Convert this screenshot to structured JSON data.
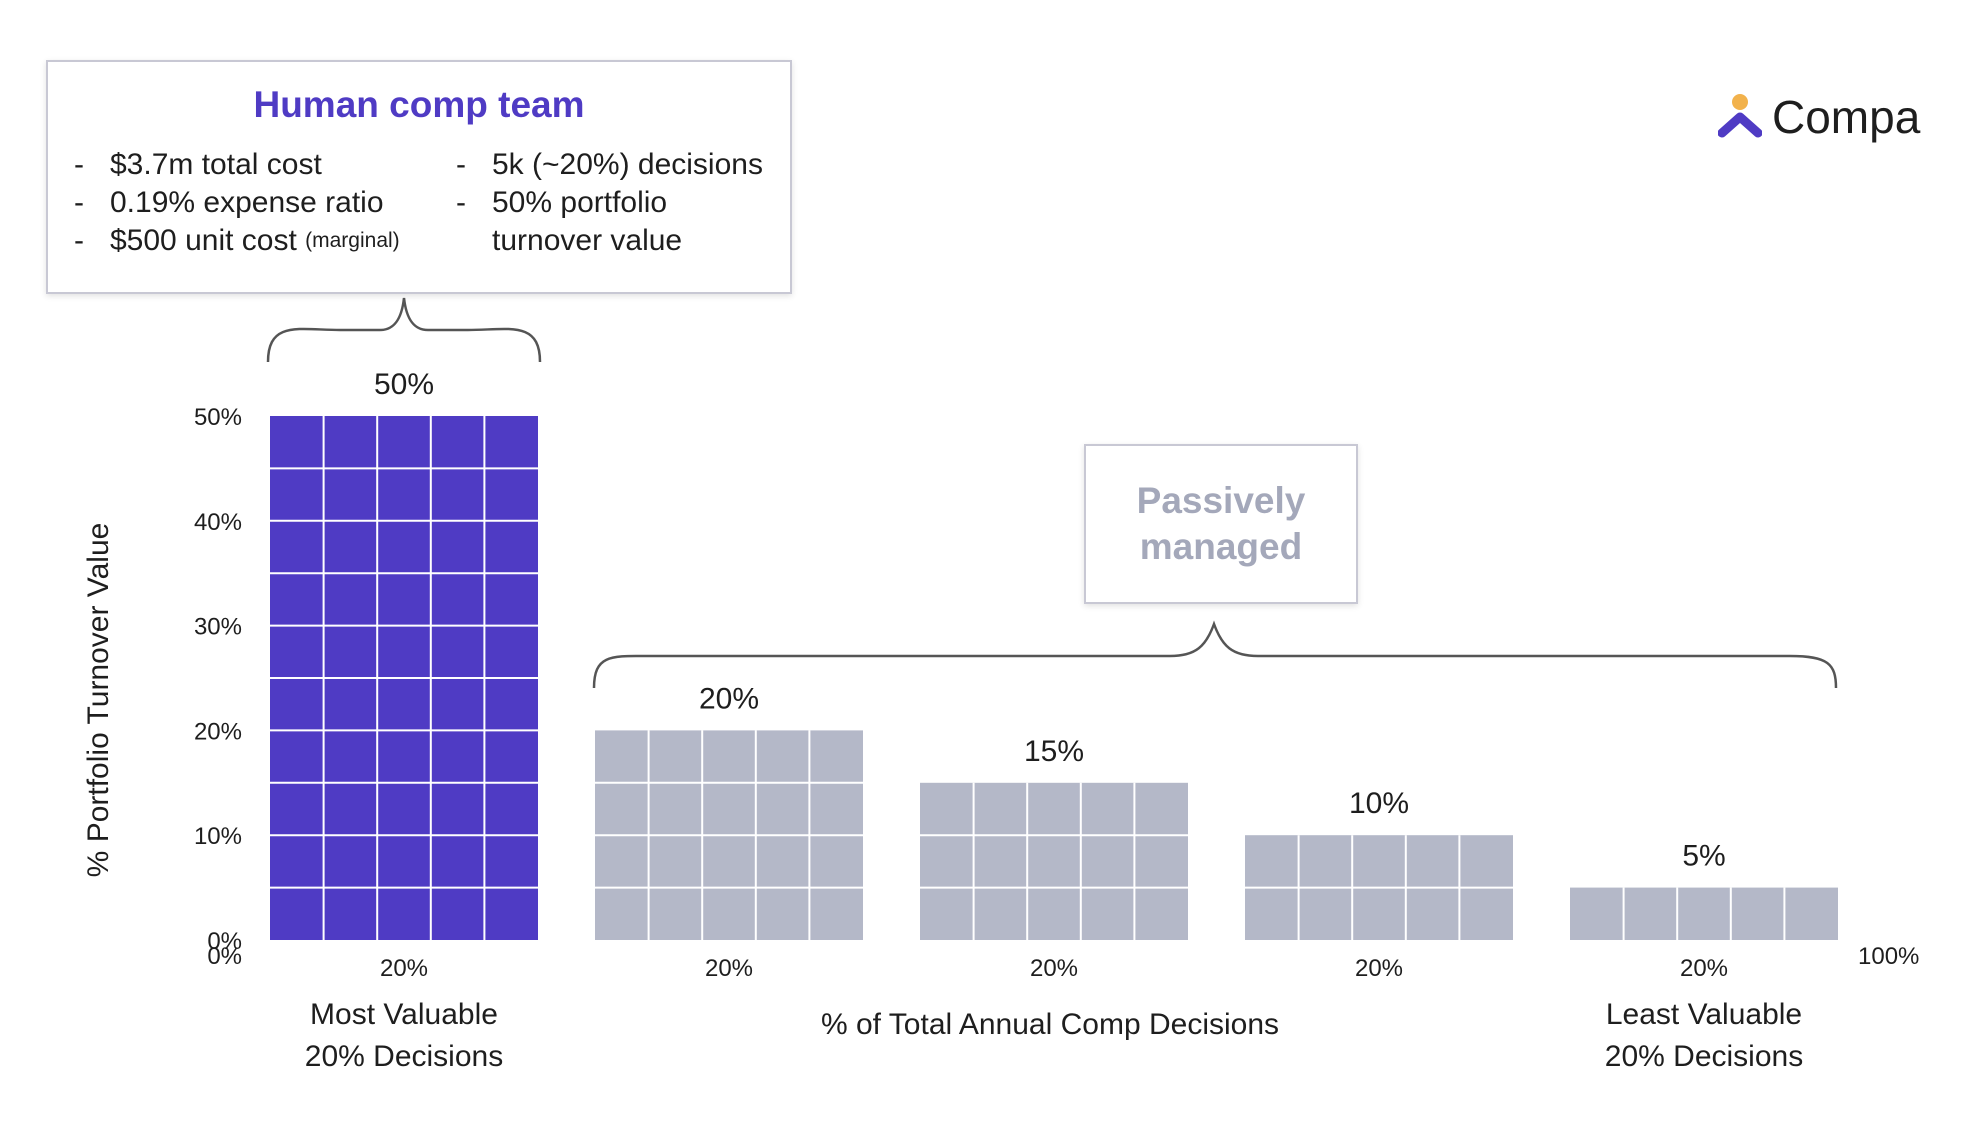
{
  "logo": {
    "name": "Compa"
  },
  "info_box": {
    "title": "Human comp team",
    "left_items": [
      {
        "text": "$3.7m total cost",
        "note": ""
      },
      {
        "text": "0.19% expense ratio",
        "note": ""
      },
      {
        "text": "$500 unit cost",
        "note": "(marginal)"
      }
    ],
    "right_items": [
      {
        "text": "5k (~20%) decisions"
      },
      {
        "text": "50% portfolio turnover value"
      }
    ]
  },
  "passive_box": {
    "label": "Passively managed"
  },
  "chart_data": {
    "type": "bar",
    "ylabel": "% Portfolio Turnover Value",
    "xlabel": "% of Total Annual Comp Decisions",
    "ylim": [
      0,
      50
    ],
    "y_ticks": [
      "0%",
      "10%",
      "20%",
      "30%",
      "40%",
      "50%"
    ],
    "x_end_label": "100%",
    "categories": [
      "20%",
      "20%",
      "20%",
      "20%",
      "20%"
    ],
    "values": [
      50,
      20,
      15,
      10,
      5
    ],
    "value_labels": [
      "50%",
      "20%",
      "15%",
      "10%",
      "5%"
    ],
    "category_captions": [
      "Most Valuable 20% Decisions",
      "",
      "",
      "",
      "Least Valuable 20% Decisions"
    ],
    "highlight_color": "#4f3bc4",
    "passive_color": "#b4b8c8",
    "grid_cell_units": 5,
    "grid_columns": 5,
    "grid": false,
    "legend": "none"
  }
}
